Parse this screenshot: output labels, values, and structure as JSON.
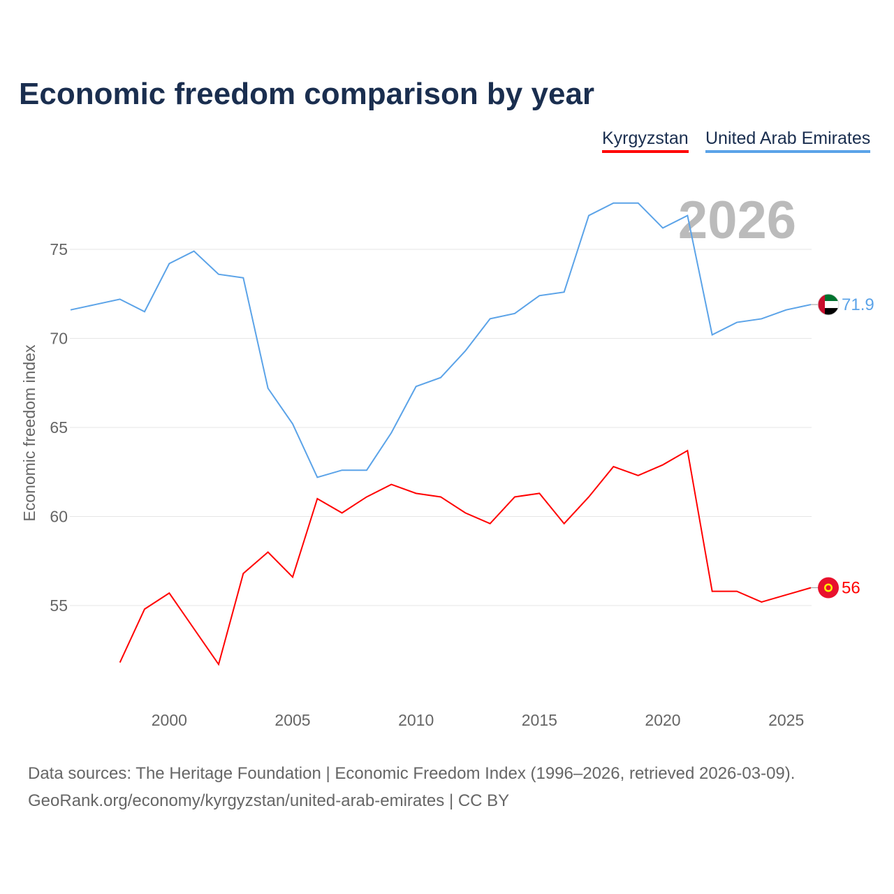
{
  "chart_data": {
    "type": "line",
    "title": "Economic freedom comparison by year",
    "xlabel": "",
    "ylabel": "Economic freedom index",
    "year_watermark": "2026",
    "xlim": [
      1996,
      2026
    ],
    "ylim": [
      49.4,
      79.6
    ],
    "x_ticks": [
      2000,
      2005,
      2010,
      2015,
      2020,
      2025
    ],
    "y_ticks": [
      55,
      60,
      65,
      70,
      75
    ],
    "grid": "horizontal",
    "legend_placement": "top-right",
    "series": [
      {
        "name": "Kyrgyzstan",
        "color": "#ff0000",
        "end_label": "56",
        "x": [
          1998,
          1999,
          2000,
          2001,
          2002,
          2003,
          2004,
          2005,
          2006,
          2007,
          2008,
          2009,
          2010,
          2011,
          2012,
          2013,
          2014,
          2015,
          2016,
          2017,
          2018,
          2019,
          2020,
          2021,
          2022,
          2023,
          2024,
          2025,
          2026
        ],
        "values": [
          51.8,
          54.8,
          55.7,
          53.7,
          51.7,
          56.8,
          58.0,
          56.6,
          61.0,
          60.2,
          61.1,
          61.8,
          61.3,
          61.1,
          60.2,
          59.6,
          61.1,
          61.3,
          59.6,
          61.1,
          62.8,
          62.3,
          62.9,
          63.7,
          55.8,
          55.8,
          55.2,
          55.6,
          56.0
        ]
      },
      {
        "name": "United Arab Emirates",
        "color": "#5ba3e8",
        "end_label": "71.9",
        "x": [
          1996,
          1997,
          1998,
          1999,
          2000,
          2001,
          2002,
          2003,
          2004,
          2005,
          2006,
          2007,
          2008,
          2009,
          2010,
          2011,
          2012,
          2013,
          2014,
          2015,
          2016,
          2017,
          2018,
          2019,
          2020,
          2021,
          2022,
          2023,
          2024,
          2025,
          2026
        ],
        "values": [
          71.6,
          71.9,
          72.2,
          71.5,
          74.2,
          74.9,
          73.6,
          73.4,
          67.2,
          65.2,
          62.2,
          62.6,
          62.6,
          64.7,
          67.3,
          67.8,
          69.3,
          71.1,
          71.4,
          72.4,
          72.6,
          76.9,
          77.6,
          77.6,
          76.2,
          76.9,
          70.2,
          70.9,
          71.1,
          71.6,
          71.9
        ]
      }
    ]
  },
  "source": {
    "line1": "Data sources: The Heritage Foundation | Economic Freedom Index (1996–2026, retrieved 2026-03-09).",
    "line2": "GeoRank.org/economy/kyrgyzstan/united-arab-emirates | CC BY"
  }
}
